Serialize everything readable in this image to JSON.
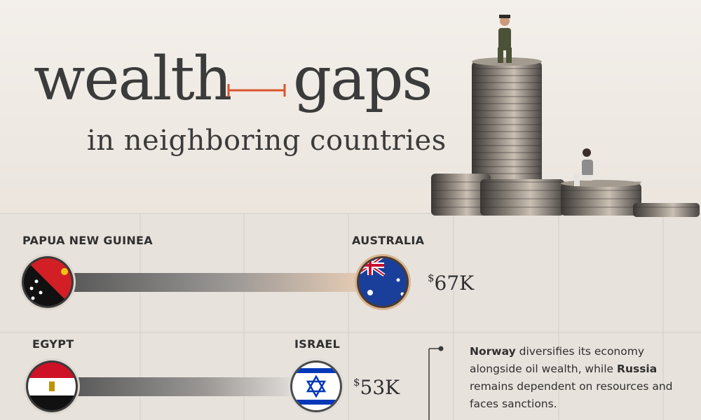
{
  "header": {
    "title_word_1": "wealth",
    "title_word_2": "gaps",
    "subtitle": "in neighboring countries"
  },
  "colors": {
    "accent": "#d9552c",
    "text": "#2f2f2f",
    "bar_dark": "#575757",
    "bar_light": "#e6ccb5"
  },
  "chart_data": {
    "type": "bar",
    "title": "wealth gaps in neighboring countries",
    "pairs": [
      {
        "low_country": "PAPUA NEW GUINEA",
        "high_country": "AUSTRALIA",
        "high_value_label": "67K",
        "high_value": 67,
        "currency": "$"
      },
      {
        "low_country": "EGYPT",
        "high_country": "ISRAEL",
        "high_value_label": "53K",
        "high_value": 53,
        "currency": "$"
      }
    ]
  },
  "note": {
    "part1": "Norway",
    "part2": " diversifies its economy alongside oil wealth, while ",
    "part3": "Russia",
    "part4": " remains dependent on resources and faces sanctions."
  }
}
